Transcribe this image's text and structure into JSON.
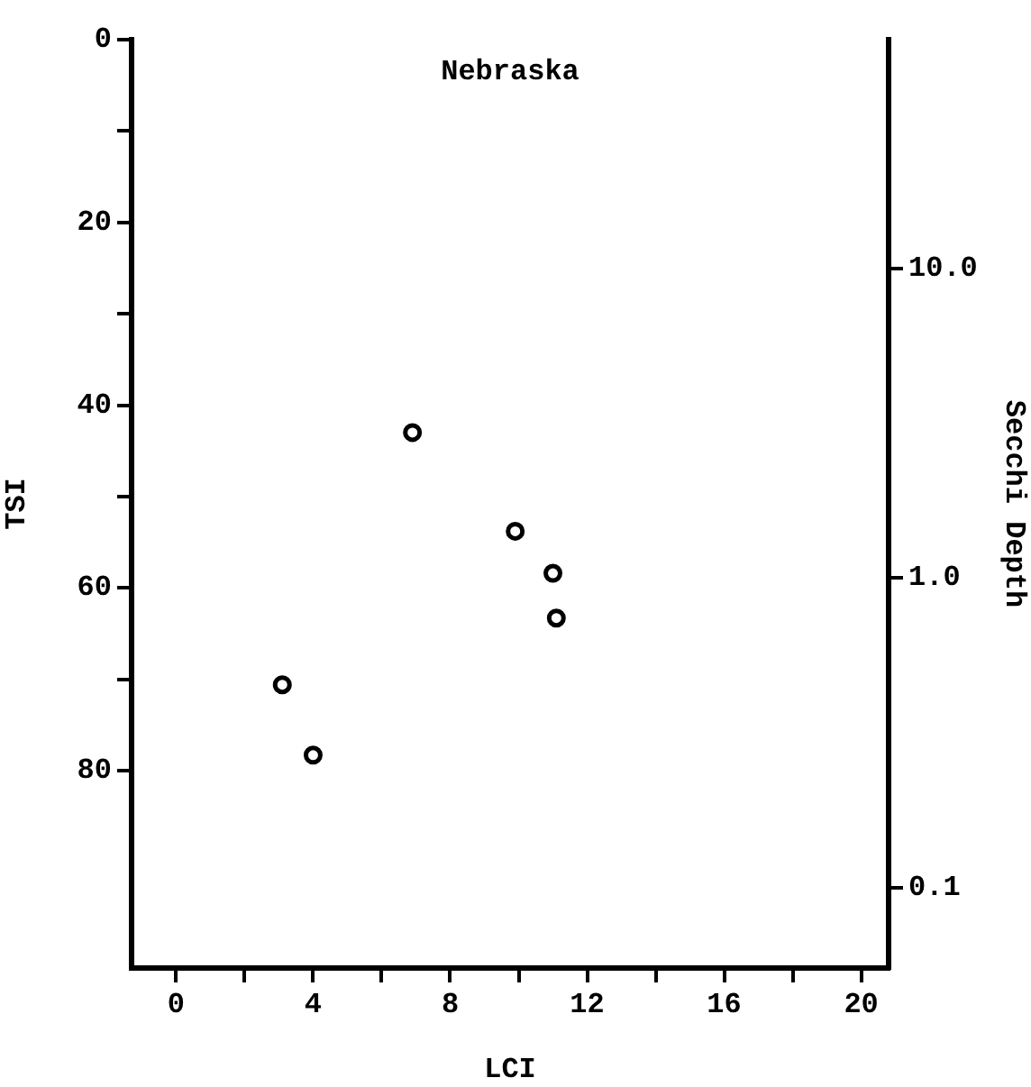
{
  "chart_data": {
    "type": "scatter",
    "title": "Nebraska",
    "xlabel": "LCI",
    "ylabel": "TSI",
    "y2label": "Secchi Depth",
    "x": [
      3.1,
      4.0,
      6.9,
      9.9,
      11.0,
      11.1
    ],
    "series": [
      {
        "color": "#000000",
        "values": [
          70.6,
          78.3,
          43.0,
          53.8,
          58.4,
          63.3
        ]
      }
    ],
    "xlim": [
      -1.3,
      20.8
    ],
    "xticks": [
      0,
      {
        "value": 2,
        "label": null
      },
      4,
      {
        "value": 6,
        "label": null
      },
      8,
      {
        "value": 10,
        "label": null
      },
      12,
      {
        "value": 14,
        "label": null
      },
      16,
      {
        "value": 18,
        "label": null
      },
      20
    ],
    "ylim": [
      101.6,
      0
    ],
    "yticks": [
      0,
      {
        "value": 10,
        "label": null
      },
      20,
      {
        "value": 30,
        "label": null
      },
      40,
      {
        "value": 50,
        "label": null
      },
      60,
      {
        "value": 70,
        "label": null
      },
      80
    ],
    "y2lim": [
      0.055,
      54.7
    ],
    "y2ticks": [
      {
        "value": 0.1,
        "label": "0.1"
      },
      {
        "value": 1,
        "label": "1.0"
      },
      {
        "value": 10,
        "label": "10.0"
      }
    ],
    "log": "y2",
    "grid": false,
    "legend": false,
    "marker": "circle"
  }
}
